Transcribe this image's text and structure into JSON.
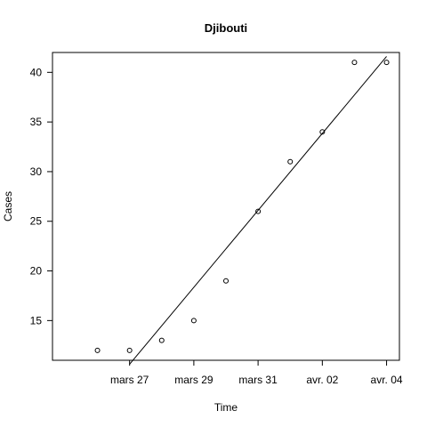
{
  "chart_data": {
    "type": "scatter",
    "title": "Djibouti",
    "xlabel": "Time",
    "ylabel": "Cases",
    "x_tick_dates": [
      "2020-03-27",
      "2020-03-29",
      "2020-03-31",
      "2020-04-02",
      "2020-04-04"
    ],
    "x_tick_labels": [
      "mars 27",
      "mars 29",
      "mars 31",
      "avr. 02",
      "avr. 04"
    ],
    "y_ticks": [
      15,
      20,
      25,
      30,
      35,
      40
    ],
    "xlim": [
      "2020-03-25",
      "2020-04-04"
    ],
    "ylim": [
      11,
      42
    ],
    "grid": false,
    "series": [
      {
        "points": [
          {
            "x": "2020-03-26",
            "y": 12
          },
          {
            "x": "2020-03-27",
            "y": 12
          },
          {
            "x": "2020-03-28",
            "y": 13
          },
          {
            "x": "2020-03-29",
            "y": 15
          },
          {
            "x": "2020-03-30",
            "y": 19
          },
          {
            "x": "2020-03-31",
            "y": 26
          },
          {
            "x": "2020-04-01",
            "y": 31
          },
          {
            "x": "2020-04-02",
            "y": 34
          },
          {
            "x": "2020-04-03",
            "y": 41
          },
          {
            "x": "2020-04-04",
            "y": 41
          }
        ]
      }
    ],
    "trend_line": {
      "points": [
        {
          "x": "2020-03-27",
          "y": 10.6
        },
        {
          "x": "2020-04-04",
          "y": 41.6
        }
      ]
    }
  }
}
